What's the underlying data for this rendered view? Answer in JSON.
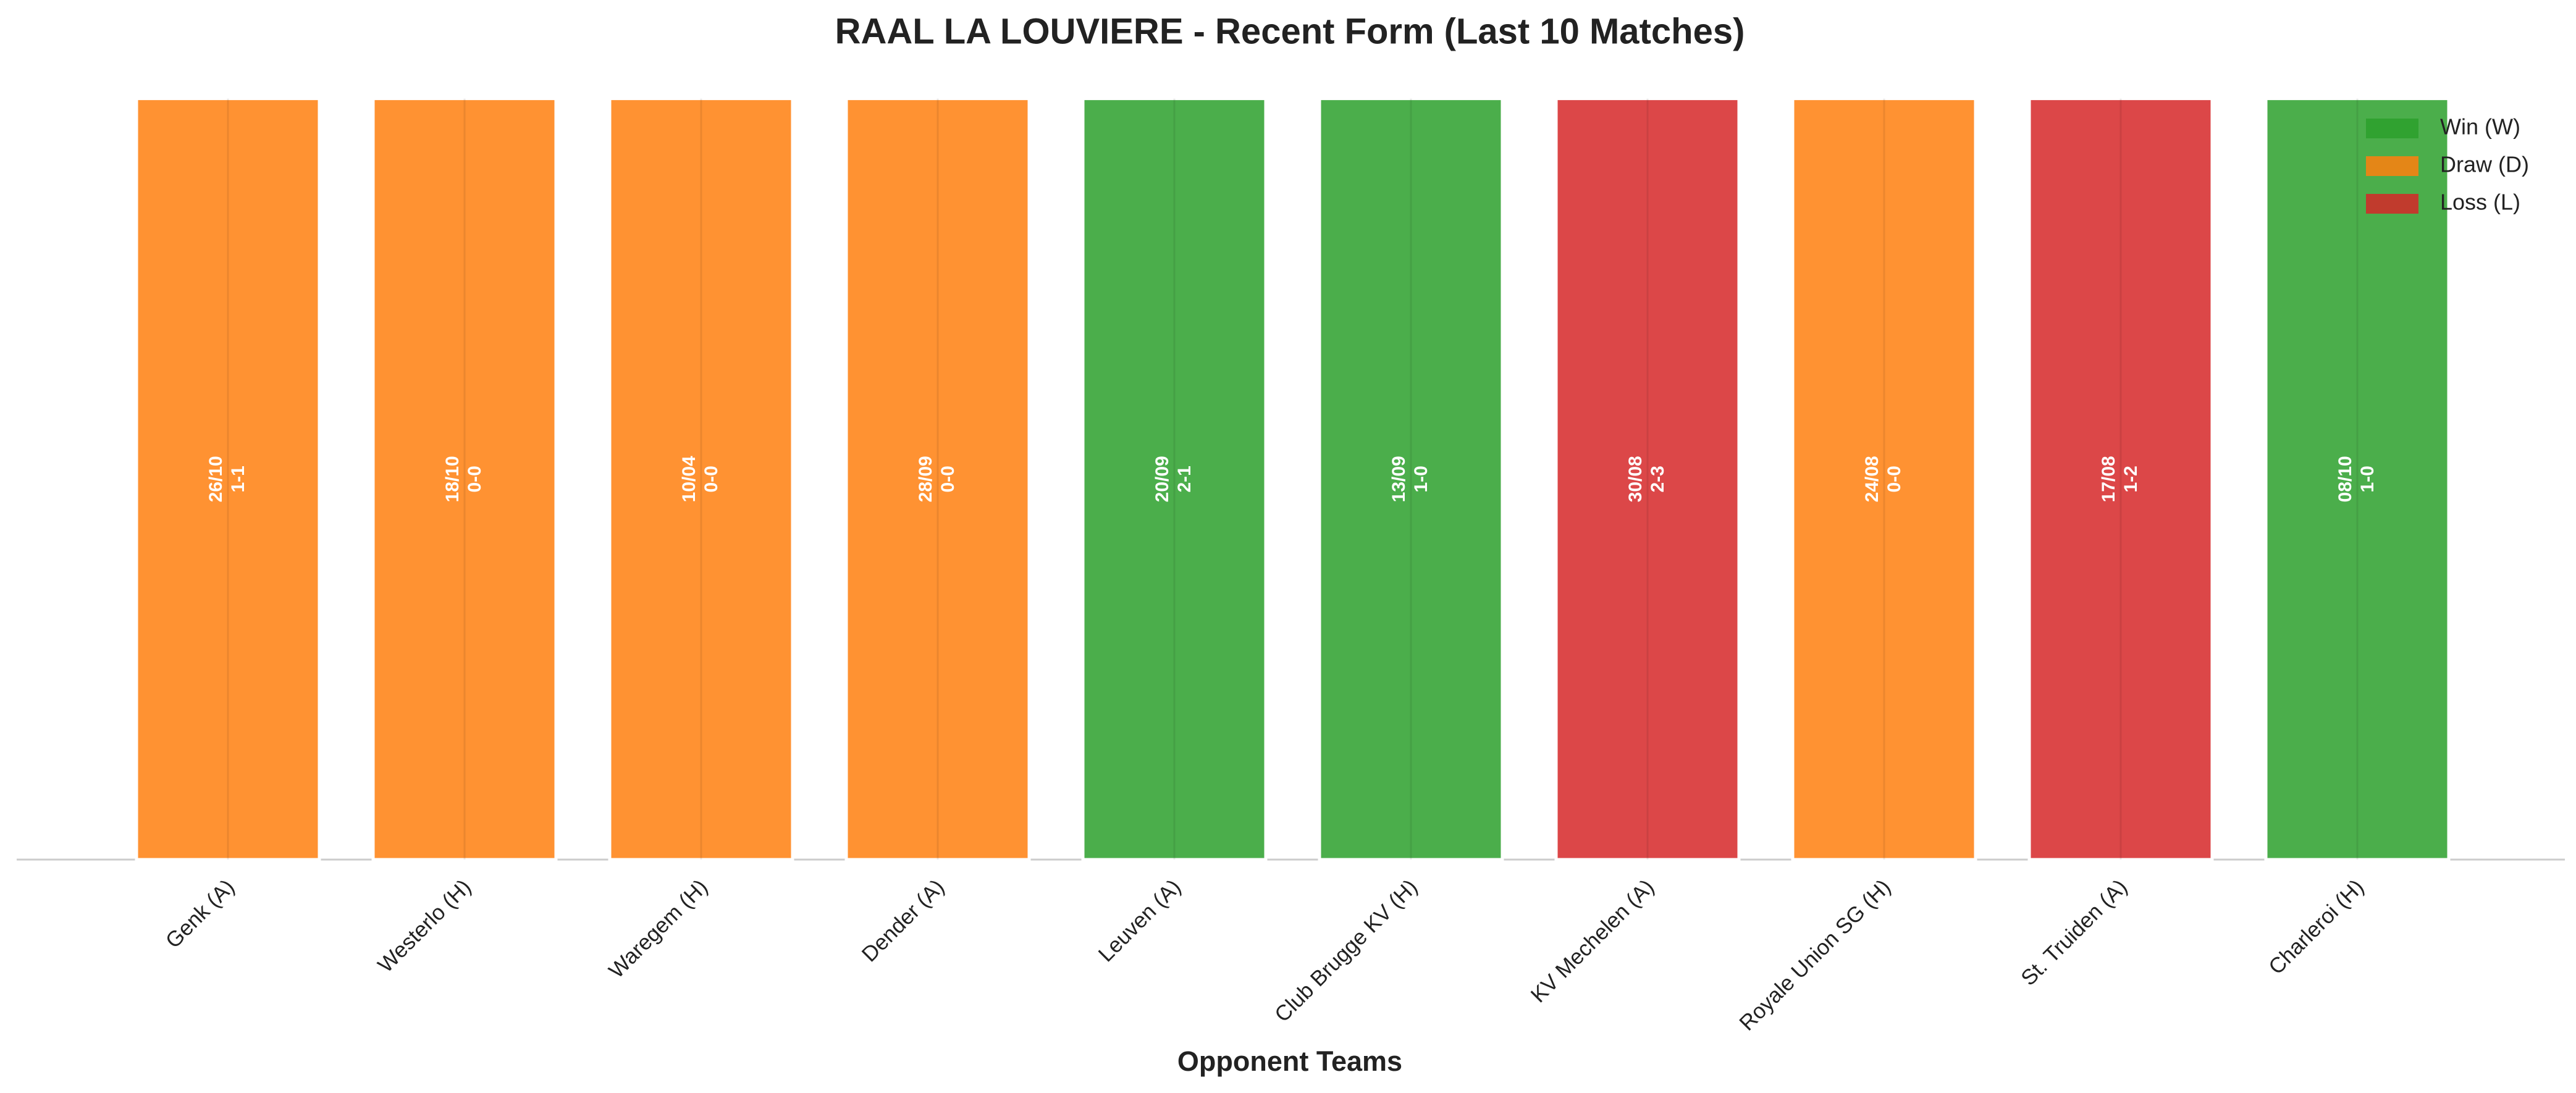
{
  "chart_data": {
    "type": "bar",
    "title": "RAAL LA LOUVIERE - Recent Form (Last 10 Matches)",
    "x_label": "Opponent Teams",
    "categories": [
      "Genk (A)",
      "Westerlo (H)",
      "Waregem (H)",
      "Dender (A)",
      "Leuven (A)",
      "Club Brugge KV (H)",
      "KV Mechelen (A)",
      "Royale Union SG (H)",
      "St. Truiden (A)",
      "Charleroi (H)"
    ],
    "values": [
      1,
      1,
      1,
      1,
      1,
      1,
      1,
      1,
      1,
      1
    ],
    "colors": [
      "#ff7f0e",
      "#ff7f0e",
      "#ff7f0e",
      "#ff7f0e",
      "#2ca02c",
      "#2ca02c",
      "#d62728",
      "#ff7f0e",
      "#d62728",
      "#2ca02c"
    ],
    "dates": [
      "26/10",
      "18/10",
      "10/04",
      "28/09",
      "20/09",
      "13/09",
      "30/08",
      "24/08",
      "17/08",
      "08/10"
    ],
    "scores": [
      "1-1",
      "0-0",
      "0-0",
      "0-0",
      "2-1",
      "1-0",
      "2-3",
      "0-0",
      "1-2",
      "1-0"
    ],
    "ylim": [
      0,
      1.05
    ],
    "xgrid": true,
    "legend_position": "upper right",
    "legend": [
      {
        "name": "Win (W)",
        "color": "#2ca02c"
      },
      {
        "name": "Draw (D)",
        "color": "#ff7f0e"
      },
      {
        "name": "Loss (L)",
        "color": "#d62728"
      }
    ]
  }
}
